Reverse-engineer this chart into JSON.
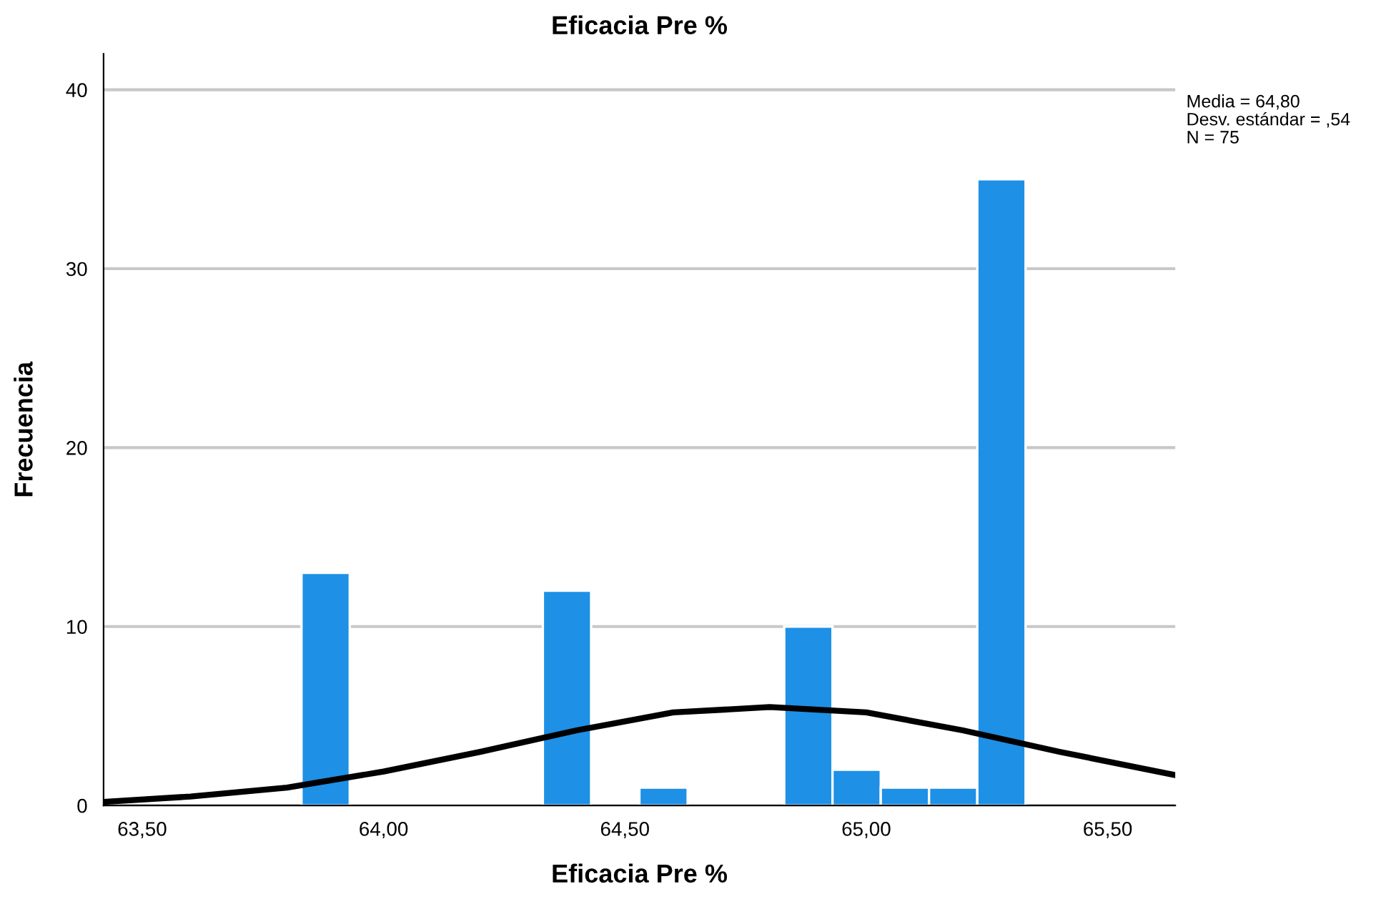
{
  "chart_data": {
    "type": "histogram",
    "title": "Eficacia Pre %",
    "xlabel": "Eficacia Pre %",
    "ylabel": "Frecuencia",
    "bins": [
      63.83,
      63.93,
      64.03,
      64.13,
      64.23,
      64.33,
      64.43,
      64.53,
      64.63,
      64.73,
      64.83,
      64.93,
      65.03,
      65.13,
      65.23,
      65.33
    ],
    "values": [
      13,
      0,
      0,
      0,
      0,
      12,
      0,
      1,
      0,
      0,
      10,
      2,
      1,
      1,
      35
    ],
    "color": "#1e90e6",
    "series": [
      {
        "type": "line",
        "color": "#000000",
        "x": [
          63.42,
          63.6,
          63.8,
          64.0,
          64.2,
          64.4,
          64.6,
          64.8,
          65.0,
          65.2,
          65.4,
          65.64
        ],
        "values": [
          0.2,
          0.5,
          1.0,
          1.9,
          3.0,
          4.2,
          5.2,
          5.5,
          5.2,
          4.2,
          3.0,
          1.7
        ]
      }
    ],
    "xlim": [
      63.42,
      65.64
    ],
    "ylim": [
      0,
      42
    ],
    "xticks": [
      {
        "value": 63.5,
        "label": "63,50"
      },
      {
        "value": 64.0,
        "label": "64,00"
      },
      {
        "value": 64.5,
        "label": "64,50"
      },
      {
        "value": 65.0,
        "label": "65,00"
      },
      {
        "value": 65.5,
        "label": "65,50"
      }
    ],
    "yticks": [
      0,
      10,
      20,
      30,
      40
    ],
    "grid": "y",
    "annotations": [
      "Media = 64,80",
      "Desv. estándar = ,54",
      "N = 75"
    ]
  }
}
